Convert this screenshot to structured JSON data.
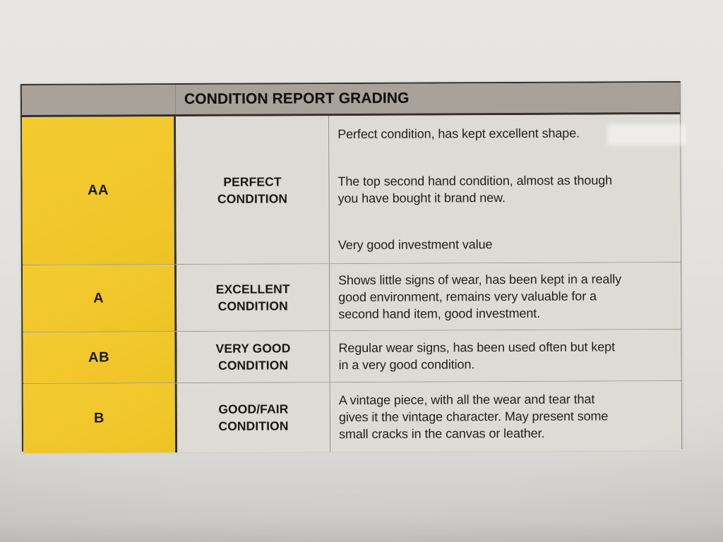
{
  "colors": {
    "paper_bg": "#e3e1de",
    "header_bg": "#a9a29b",
    "cell_bg": "#dedbd6",
    "grade_column_bg": "#f1c72c",
    "text": "#1e1b18",
    "border_dark": "#332e29",
    "border_light": "#8d877f"
  },
  "table": {
    "header": "CONDITION REPORT GRADING",
    "rows": [
      {
        "grade": "AA",
        "condition_lines": [
          "PERFECT",
          "CONDITION"
        ],
        "description_paragraphs": [
          {
            "lines": [
              "Perfect condition, has kept excellent shape."
            ]
          },
          {
            "lines": [
              "The top second hand condition, almost as though",
              "you have bought it brand new."
            ]
          },
          {
            "lines": [
              "Very good investment value"
            ]
          }
        ]
      },
      {
        "grade": "A",
        "condition_lines": [
          "EXCELLENT",
          "CONDITION"
        ],
        "description_paragraphs": [
          {
            "lines": [
              "Shows little signs of wear, has been kept in a really",
              "good environment, remains very valuable for a",
              "second hand item, good investment."
            ]
          }
        ]
      },
      {
        "grade": "AB",
        "condition_lines": [
          "VERY GOOD",
          "CONDITION"
        ],
        "description_paragraphs": [
          {
            "lines": [
              "Regular wear signs, has been used often but kept",
              "in a very good condition."
            ]
          }
        ]
      },
      {
        "grade": "B",
        "condition_lines": [
          "GOOD/FAIR",
          "CONDITION"
        ],
        "description_paragraphs": [
          {
            "lines": [
              "A vintage piece, with all the wear and tear that",
              "gives it the vintage character. May present some",
              "small cracks in the canvas or leather."
            ]
          }
        ]
      }
    ]
  }
}
